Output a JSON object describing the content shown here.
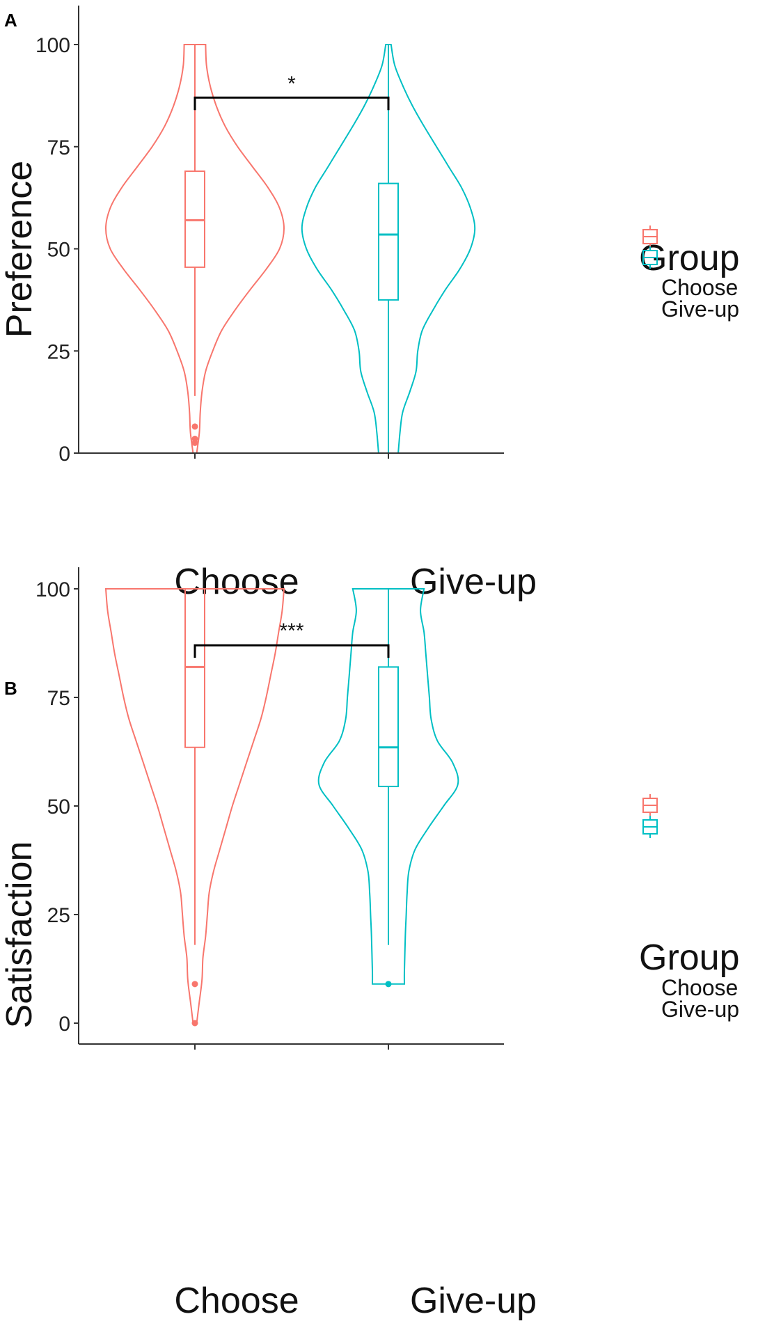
{
  "colors": {
    "choose": "#F8766D",
    "giveup": "#00BFC4",
    "axis": "#333333",
    "bracket": "#000000"
  },
  "chart_data": [
    {
      "panel": "A",
      "type": "violin",
      "ylabel": "Preference",
      "ylim": [
        0,
        100
      ],
      "yticks": [
        0,
        25,
        50,
        75,
        100
      ],
      "categories": [
        "Choose",
        "Give-up"
      ],
      "legend": {
        "title": "Group",
        "entries": [
          "Choose",
          "Give-up"
        ],
        "placement": "right"
      },
      "significance": {
        "label": "*",
        "between": [
          "Choose",
          "Give-up"
        ],
        "y": 87
      },
      "groups": [
        {
          "name": "Choose",
          "box": {
            "q1": 45.5,
            "median": 57,
            "q3": 69,
            "whisker_low": 14,
            "whisker_high": 100
          },
          "outliers": [
            6.5,
            3.5,
            2.5
          ],
          "violin": [
            [
              0,
              0.02
            ],
            [
              5,
              0.05
            ],
            [
              10,
              0.06
            ],
            [
              15,
              0.08
            ],
            [
              20,
              0.12
            ],
            [
              25,
              0.2
            ],
            [
              30,
              0.3
            ],
            [
              35,
              0.45
            ],
            [
              40,
              0.62
            ],
            [
              45,
              0.8
            ],
            [
              50,
              0.95
            ],
            [
              55,
              1.0
            ],
            [
              60,
              0.95
            ],
            [
              65,
              0.82
            ],
            [
              70,
              0.65
            ],
            [
              75,
              0.48
            ],
            [
              80,
              0.34
            ],
            [
              85,
              0.24
            ],
            [
              90,
              0.17
            ],
            [
              95,
              0.13
            ],
            [
              100,
              0.12
            ]
          ]
        },
        {
          "name": "Give-up",
          "box": {
            "q1": 37.5,
            "median": 53.5,
            "q3": 66,
            "whisker_low": 0,
            "whisker_high": 100
          },
          "outliers": [],
          "violin": [
            [
              0,
              0.11
            ],
            [
              5,
              0.13
            ],
            [
              10,
              0.16
            ],
            [
              15,
              0.24
            ],
            [
              20,
              0.31
            ],
            [
              25,
              0.33
            ],
            [
              30,
              0.38
            ],
            [
              35,
              0.5
            ],
            [
              40,
              0.64
            ],
            [
              45,
              0.8
            ],
            [
              50,
              0.92
            ],
            [
              55,
              0.97
            ],
            [
              60,
              0.92
            ],
            [
              65,
              0.82
            ],
            [
              70,
              0.68
            ],
            [
              75,
              0.54
            ],
            [
              80,
              0.4
            ],
            [
              85,
              0.27
            ],
            [
              90,
              0.16
            ],
            [
              95,
              0.07
            ],
            [
              100,
              0.03
            ]
          ]
        }
      ]
    },
    {
      "panel": "B",
      "type": "violin",
      "ylabel": "Satisfaction",
      "ylim": [
        0,
        100
      ],
      "yticks": [
        0,
        25,
        50,
        75,
        100
      ],
      "categories": [
        "Choose",
        "Give-up"
      ],
      "legend": {
        "title": "Group",
        "entries": [
          "Choose",
          "Give-up"
        ],
        "placement": "right"
      },
      "significance": {
        "label": "***",
        "between": [
          "Choose",
          "Give-up"
        ],
        "y": 87
      },
      "groups": [
        {
          "name": "Choose",
          "box": {
            "q1": 63.5,
            "median": 82,
            "q3": 100,
            "whisker_low": 18,
            "whisker_high": 100
          },
          "outliers": [
            9,
            0
          ],
          "violin": [
            [
              0,
              0.02
            ],
            [
              5,
              0.05
            ],
            [
              10,
              0.08
            ],
            [
              15,
              0.09
            ],
            [
              20,
              0.12
            ],
            [
              25,
              0.14
            ],
            [
              30,
              0.16
            ],
            [
              35,
              0.21
            ],
            [
              40,
              0.28
            ],
            [
              45,
              0.35
            ],
            [
              50,
              0.42
            ],
            [
              55,
              0.5
            ],
            [
              60,
              0.58
            ],
            [
              65,
              0.66
            ],
            [
              70,
              0.74
            ],
            [
              75,
              0.8
            ],
            [
              80,
              0.85
            ],
            [
              85,
              0.9
            ],
            [
              90,
              0.94
            ],
            [
              95,
              0.98
            ],
            [
              100,
              1.0
            ]
          ]
        },
        {
          "name": "Give-up",
          "box": {
            "q1": 54.5,
            "median": 63.5,
            "q3": 82,
            "whisker_low": 18,
            "whisker_high": 100
          },
          "outliers": [
            9
          ],
          "violin": [
            [
              9,
              0.18
            ],
            [
              12,
              0.18
            ],
            [
              20,
              0.19
            ],
            [
              25,
              0.2
            ],
            [
              30,
              0.21
            ],
            [
              35,
              0.23
            ],
            [
              40,
              0.3
            ],
            [
              45,
              0.45
            ],
            [
              50,
              0.62
            ],
            [
              55,
              0.78
            ],
            [
              60,
              0.72
            ],
            [
              65,
              0.55
            ],
            [
              70,
              0.48
            ],
            [
              75,
              0.46
            ],
            [
              80,
              0.44
            ],
            [
              85,
              0.42
            ],
            [
              90,
              0.4
            ],
            [
              95,
              0.36
            ],
            [
              100,
              0.4
            ]
          ]
        }
      ]
    }
  ]
}
